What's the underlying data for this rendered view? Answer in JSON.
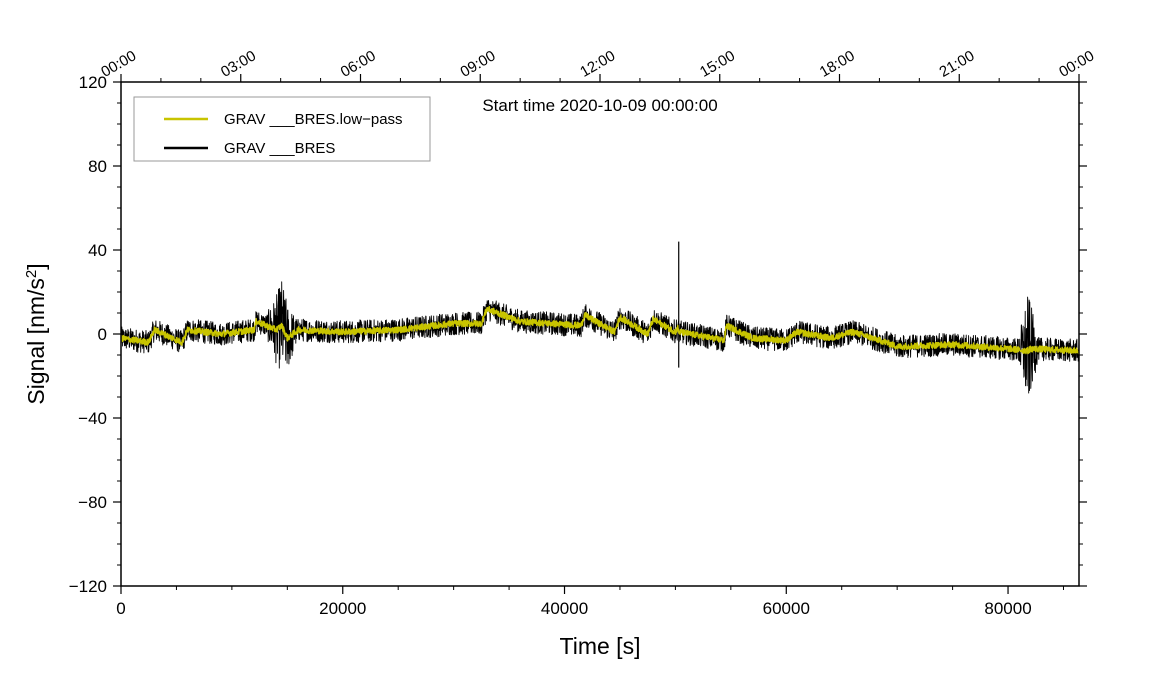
{
  "chart_data": {
    "type": "line",
    "annotation": "Start time 2020-10-09 00:00:00",
    "xlabel": "Time [s]",
    "ylabel_main": "Signal [nm/s",
    "ylabel_sup": "2",
    "ylabel_end": "]",
    "xlim": [
      0,
      86400
    ],
    "ylim": [
      -120,
      120
    ],
    "grid": false,
    "legend_position": "top-left",
    "x_ticks": [
      0,
      20000,
      40000,
      60000,
      80000
    ],
    "x_tick_labels": [
      "0",
      "20000",
      "40000",
      "60000",
      "80000"
    ],
    "y_ticks": [
      -120,
      -80,
      -40,
      0,
      40,
      80,
      120
    ],
    "y_tick_labels": [
      "−120",
      "−80",
      "−40",
      "0",
      "40",
      "80",
      "120"
    ],
    "top_axis": {
      "ticks_s": [
        0,
        10800,
        21600,
        32400,
        43200,
        54000,
        64800,
        75600,
        86400
      ],
      "labels": [
        "00:00",
        "03:00",
        "06:00",
        "09:00",
        "12:00",
        "15:00",
        "18:00",
        "21:00",
        "00:00"
      ]
    },
    "series": [
      {
        "name": "GRAV ___BRES.low−pass",
        "color": "#c8c400",
        "noise_amp": 1.5,
        "x": [
          0,
          2500,
          3000,
          5500,
          6000,
          9000,
          12000,
          12200,
          14000,
          14500,
          15000,
          16000,
          20000,
          25000,
          30000,
          32500,
          33000,
          36000,
          41500,
          41800,
          44500,
          45000,
          47500,
          48000,
          50000,
          50200,
          50300,
          54400,
          54600,
          57000,
          60000,
          61000,
          64000,
          66000,
          69000,
          70000,
          75000,
          80000,
          81800,
          82000,
          86400
        ],
        "y": [
          -2,
          -4,
          2,
          -4,
          2,
          0,
          2,
          6,
          2,
          4,
          -2,
          2,
          1,
          2,
          5,
          5,
          12,
          6,
          4,
          9,
          1,
          8,
          0,
          7,
          1,
          3,
          1,
          -3,
          4,
          -2,
          -3,
          1,
          -2,
          1,
          -4,
          -6,
          -5,
          -7,
          -8,
          -7,
          -8
        ]
      },
      {
        "name": "GRAV ___BRES",
        "color": "#000000",
        "noise_amp": 5.5,
        "x": [
          0,
          2500,
          3000,
          5500,
          6000,
          9000,
          12000,
          12200,
          14000,
          14500,
          15000,
          16000,
          20000,
          25000,
          30000,
          32500,
          33000,
          36000,
          41500,
          41800,
          44500,
          45000,
          47500,
          48000,
          50000,
          50200,
          50300,
          54400,
          54600,
          57000,
          60000,
          61000,
          64000,
          66000,
          69000,
          70000,
          75000,
          80000,
          81800,
          82000,
          86400
        ],
        "y": [
          -2,
          -4,
          2,
          -4,
          2,
          0,
          2,
          6,
          2,
          4,
          -2,
          2,
          1,
          2,
          5,
          5,
          12,
          6,
          4,
          9,
          1,
          8,
          0,
          7,
          1,
          3,
          1,
          -3,
          4,
          -2,
          -3,
          1,
          -2,
          1,
          -4,
          -6,
          -5,
          -7,
          -8,
          -7,
          -8
        ],
        "bursts": [
          {
            "x": 14500,
            "width": 1400,
            "amp": 17
          },
          {
            "x": 81800,
            "width": 900,
            "amp": 22
          }
        ],
        "spikes": [
          {
            "x": 50300,
            "y_min": -16,
            "y_max": 44
          }
        ]
      }
    ]
  }
}
